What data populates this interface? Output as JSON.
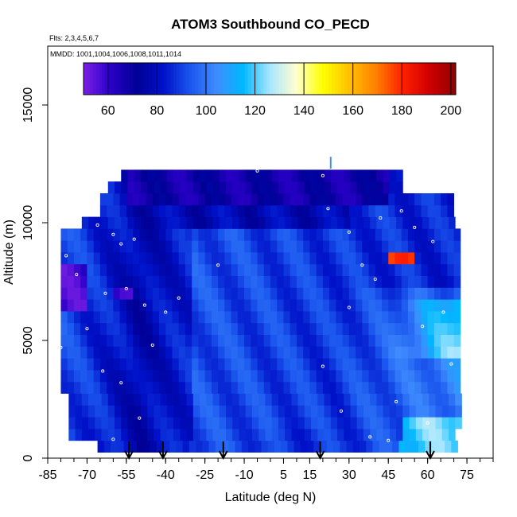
{
  "chart_data": {
    "type": "heatmap",
    "title": "ATOM3 Southbound CO_PECD",
    "subtitle_flights": "Flts: 2,3,4,5,6,7",
    "subtitle_dates": "MMDD: 1001,1004,1006,1008,1011,1014",
    "xlabel": "Latitude (deg N)",
    "ylabel": "Altitude (m)",
    "xlim": [
      -85,
      85
    ],
    "ylim": [
      0,
      17500
    ],
    "x_ticks": [
      -85,
      -70,
      -55,
      -40,
      -25,
      -10,
      5,
      15,
      30,
      45,
      60,
      75
    ],
    "y_ticks": [
      0,
      5000,
      10000,
      15000
    ],
    "colorbar": {
      "range": [
        50,
        202
      ],
      "ticks": [
        60,
        80,
        100,
        120,
        140,
        160,
        180,
        200
      ],
      "colors": [
        "#7b1fe6",
        "#2a00c8",
        "#000096",
        "#0011c8",
        "#1a55ee",
        "#3f8cff",
        "#00b8ff",
        "#a8e6ff",
        "#ffffd0",
        "#ffff00",
        "#ffc000",
        "#ff8000",
        "#ff2000",
        "#d00000",
        "#900000"
      ]
    },
    "profile_markers_lat": [
      -54,
      -41,
      -18,
      19,
      61
    ],
    "altitude_levels_m": [
      500,
      1000,
      1500,
      2000,
      2500,
      3000,
      3500,
      4000,
      4500,
      5000,
      5500,
      6000,
      6500,
      7000,
      7500,
      8000,
      8500,
      9000,
      9500,
      10000,
      10500,
      11000,
      11500,
      12000
    ],
    "grid": false,
    "legend": "top (colorbar)"
  }
}
